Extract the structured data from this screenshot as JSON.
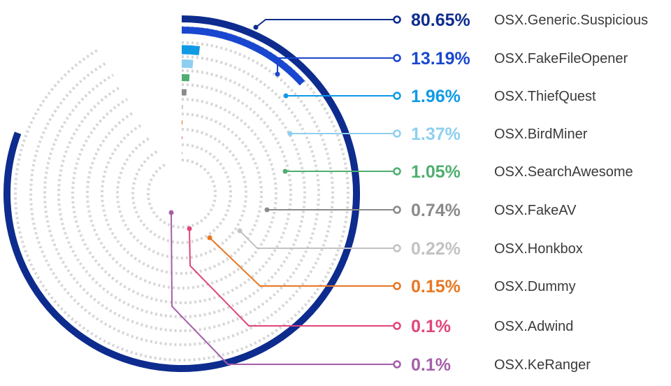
{
  "chart_data": {
    "type": "radial-bar",
    "title": "",
    "max": 100,
    "series": [
      {
        "name": "OSX.Generic.Suspicious",
        "value": 80.65,
        "label": "80.65%",
        "color": "#0e2c8e"
      },
      {
        "name": "OSX.FakeFileOpener",
        "value": 13.19,
        "label": "13.19%",
        "color": "#1a47cf"
      },
      {
        "name": "OSX.ThiefQuest",
        "value": 1.96,
        "label": "1.96%",
        "color": "#0f9ae6"
      },
      {
        "name": "OSX.BirdMiner",
        "value": 1.37,
        "label": "1.37%",
        "color": "#8ecff0"
      },
      {
        "name": "OSX.SearchAwesome",
        "value": 1.05,
        "label": "1.05%",
        "color": "#4fae6f"
      },
      {
        "name": "OSX.FakeAV",
        "value": 0.74,
        "label": "0.74%",
        "color": "#8a8a8a"
      },
      {
        "name": "OSX.Honkbox",
        "value": 0.22,
        "label": "0.22%",
        "color": "#c2c2c2"
      },
      {
        "name": "OSX.Dummy",
        "value": 0.15,
        "label": "0.15%",
        "color": "#e87722"
      },
      {
        "name": "OSX.Adwind",
        "value": 0.1,
        "label": "0.1%",
        "color": "#e0457b"
      },
      {
        "name": "OSX.KeRanger",
        "value": 0.1,
        "label": "0.1%",
        "color": "#a45fa8"
      }
    ]
  }
}
